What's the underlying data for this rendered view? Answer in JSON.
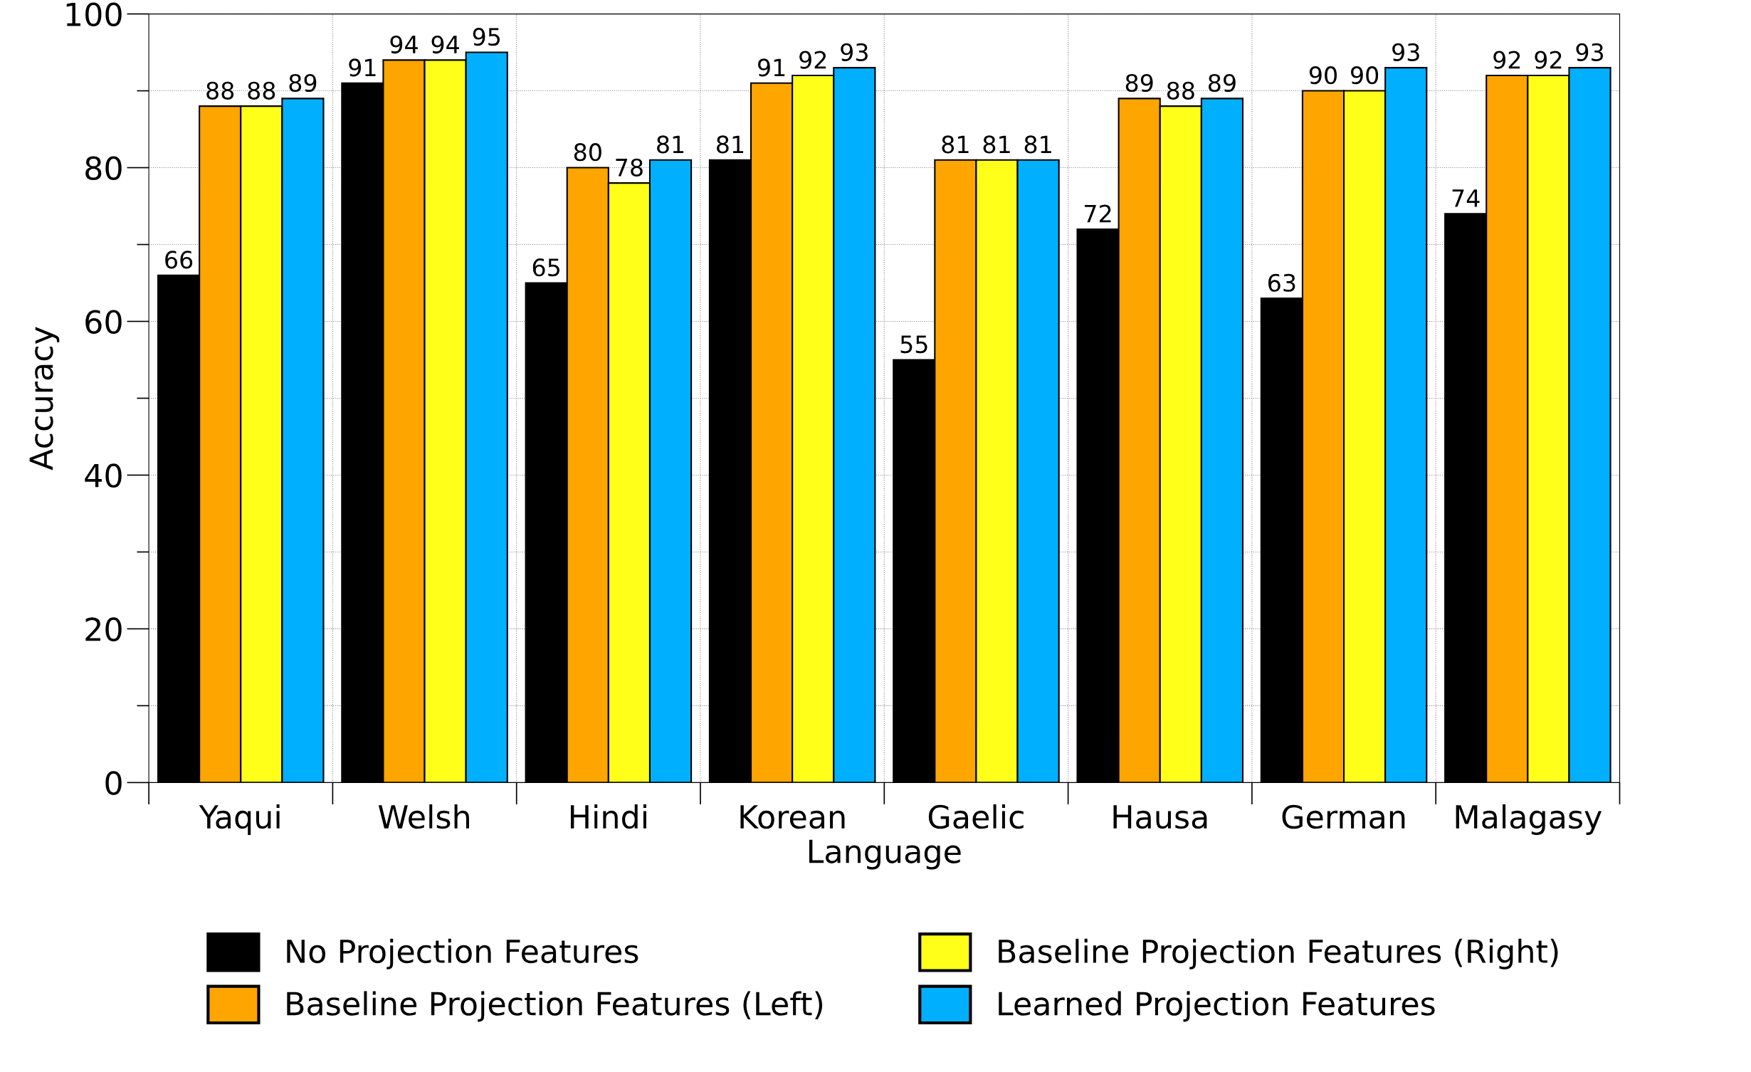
{
  "chart_data": {
    "type": "bar",
    "xlabel": "Language",
    "ylabel": "Accuracy",
    "categories": [
      "Yaqui",
      "Welsh",
      "Hindi",
      "Korean",
      "Gaelic",
      "Hausa",
      "German",
      "Malagasy"
    ],
    "series": [
      {
        "name": "No Projection Features",
        "color": "#000000",
        "values": [
          66,
          91,
          65,
          81,
          55,
          72,
          63,
          74
        ]
      },
      {
        "name": "Baseline Projection Features (Left)",
        "color": "#ffa500",
        "values": [
          88,
          94,
          80,
          91,
          81,
          89,
          90,
          92
        ]
      },
      {
        "name": "Baseline Projection Features (Right)",
        "color": "#ffff1a",
        "values": [
          88,
          94,
          78,
          92,
          81,
          88,
          90,
          92
        ]
      },
      {
        "name": "Learned Projection Features",
        "color": "#00b0ff",
        "values": [
          89,
          95,
          81,
          93,
          81,
          89,
          93,
          93
        ]
      }
    ],
    "ylim": [
      0,
      100
    ],
    "yticks": [
      0,
      {
        "value": 10,
        "label": null
      },
      20,
      {
        "value": 30,
        "label": null
      },
      40,
      {
        "value": 50,
        "label": null
      },
      60,
      {
        "value": 70,
        "label": null
      },
      80,
      {
        "value": 90,
        "label": null
      },
      100
    ],
    "data_labels": true,
    "grid": true,
    "legend": "bottom"
  }
}
